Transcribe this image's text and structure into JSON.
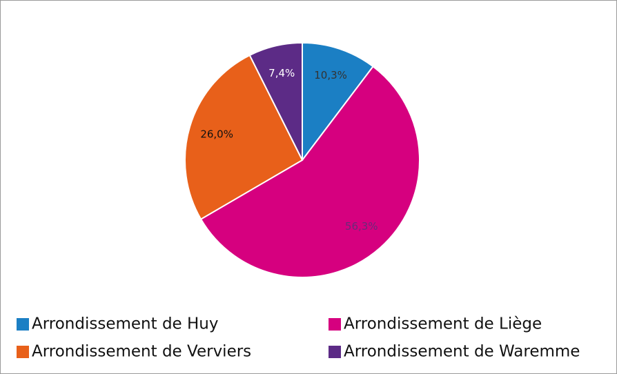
{
  "chart_data": {
    "type": "pie",
    "categories": [
      "Arrondissement de Huy",
      "Arrondissement de Liège",
      "Arrondissement de Verviers",
      "Arrondissement de Waremme"
    ],
    "values": [
      10.3,
      56.3,
      26.0,
      7.4
    ],
    "value_labels": [
      "10,3%",
      "56,3%",
      "26,0%",
      "7,4%"
    ],
    "colors": [
      "#1b7fc4",
      "#d6007f",
      "#e8601a",
      "#5c2b86"
    ],
    "value_label_colors": [
      "#333333",
      "#6a2a7a",
      "#111111",
      "#ffffff"
    ],
    "legend": "bottom"
  }
}
